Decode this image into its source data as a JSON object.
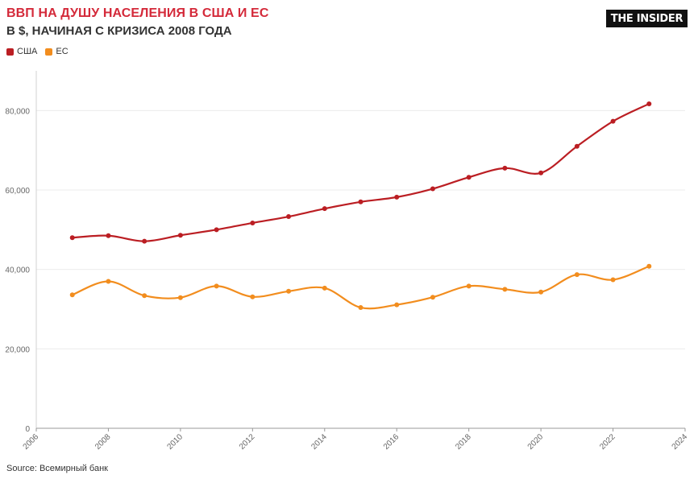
{
  "header": {
    "title": "ВВП НА ДУШУ НАСЕЛЕНИЯ В США И ЕС",
    "subtitle": "В $, НАЧИНАЯ С КРИЗИСА 2008 ГОДА"
  },
  "logo": {
    "text": "THE INSIDER"
  },
  "footer": {
    "source": "Source: Всемирный банк"
  },
  "chart_data": {
    "type": "line",
    "title": "ВВП НА ДУШУ НАСЕЛЕНИЯ В США И ЕС",
    "subtitle": "В $, НАЧИНАЯ С КРИЗИСА 2008 ГОДА",
    "xlabel": "",
    "ylabel": "",
    "xlim": [
      2006,
      2024
    ],
    "ylim": [
      0,
      90000
    ],
    "x_ticks": [
      "2006",
      "2008",
      "2010",
      "2012",
      "2014",
      "2016",
      "2018",
      "2020",
      "2022",
      "2024"
    ],
    "y_ticks": [
      "0",
      "20,000",
      "40,000",
      "60,000",
      "80,000"
    ],
    "grid": true,
    "legend_position": "top-left",
    "x": [
      2007,
      2008,
      2009,
      2010,
      2011,
      2012,
      2013,
      2014,
      2015,
      2016,
      2017,
      2018,
      2019,
      2020,
      2021,
      2022,
      2023
    ],
    "series": [
      {
        "name": "США",
        "color": "#bb1e23",
        "values": [
          48000,
          48500,
          47100,
          48600,
          50000,
          51700,
          53300,
          55300,
          57000,
          58200,
          60300,
          63200,
          65500,
          64300,
          71000,
          77300,
          81700
        ]
      },
      {
        "name": "ЕС",
        "color": "#f28d1e",
        "values": [
          33600,
          37000,
          33400,
          32900,
          35800,
          33100,
          34500,
          35300,
          30400,
          31100,
          33000,
          35800,
          35000,
          34300,
          38700,
          37400,
          40800
        ]
      }
    ]
  }
}
